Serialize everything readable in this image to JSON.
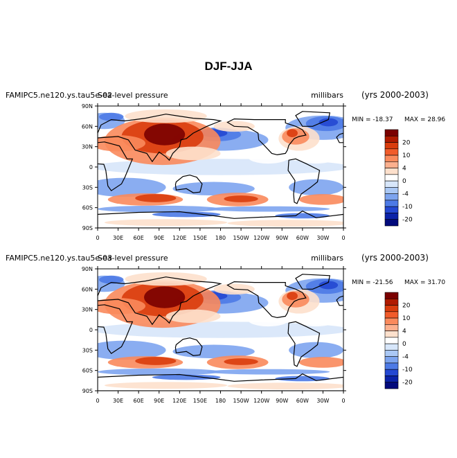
{
  "title": "DJF-JJA",
  "panels": [
    {
      "case_name": "FAMIPC5.ne120.ys.tau5e-02",
      "variable": "Sea-level pressure",
      "units": "millibars",
      "years": "(yrs 2000-2003)",
      "min_label": "MIN = -18.37",
      "max_label": "MAX =  28.96",
      "min": -18.37,
      "max": 28.96
    },
    {
      "case_name": "FAMIPC5.ne120.ys.tau5e-03",
      "variable": "Sea-level pressure",
      "units": "millibars",
      "years": "(yrs 2000-2003)",
      "min_label": "MIN = -21.56",
      "max_label": "MAX =  31.70",
      "min": -21.56,
      "max": 31.7
    }
  ],
  "lat_labels": [
    "90N",
    "60N",
    "30N",
    "0",
    "30S",
    "60S",
    "90S"
  ],
  "lon_labels": [
    "0",
    "30E",
    "60E",
    "90E",
    "120E",
    "150E",
    "180",
    "150W",
    "120W",
    "90W",
    "60W",
    "30W",
    "0"
  ],
  "colorbar": {
    "labels": [
      "20",
      "10",
      "4",
      "0",
      "-4",
      "-10",
      "-20"
    ],
    "colors": [
      "#7a0000",
      "#b01a00",
      "#d93c0d",
      "#f15b2a",
      "#fa8a5c",
      "#fcb08e",
      "#fde0cc",
      "#ffffff",
      "#d7e6fa",
      "#aac8f5",
      "#7da4ef",
      "#4d7ae6",
      "#2448d2",
      "#0b22a8",
      "#020a7c"
    ]
  }
}
